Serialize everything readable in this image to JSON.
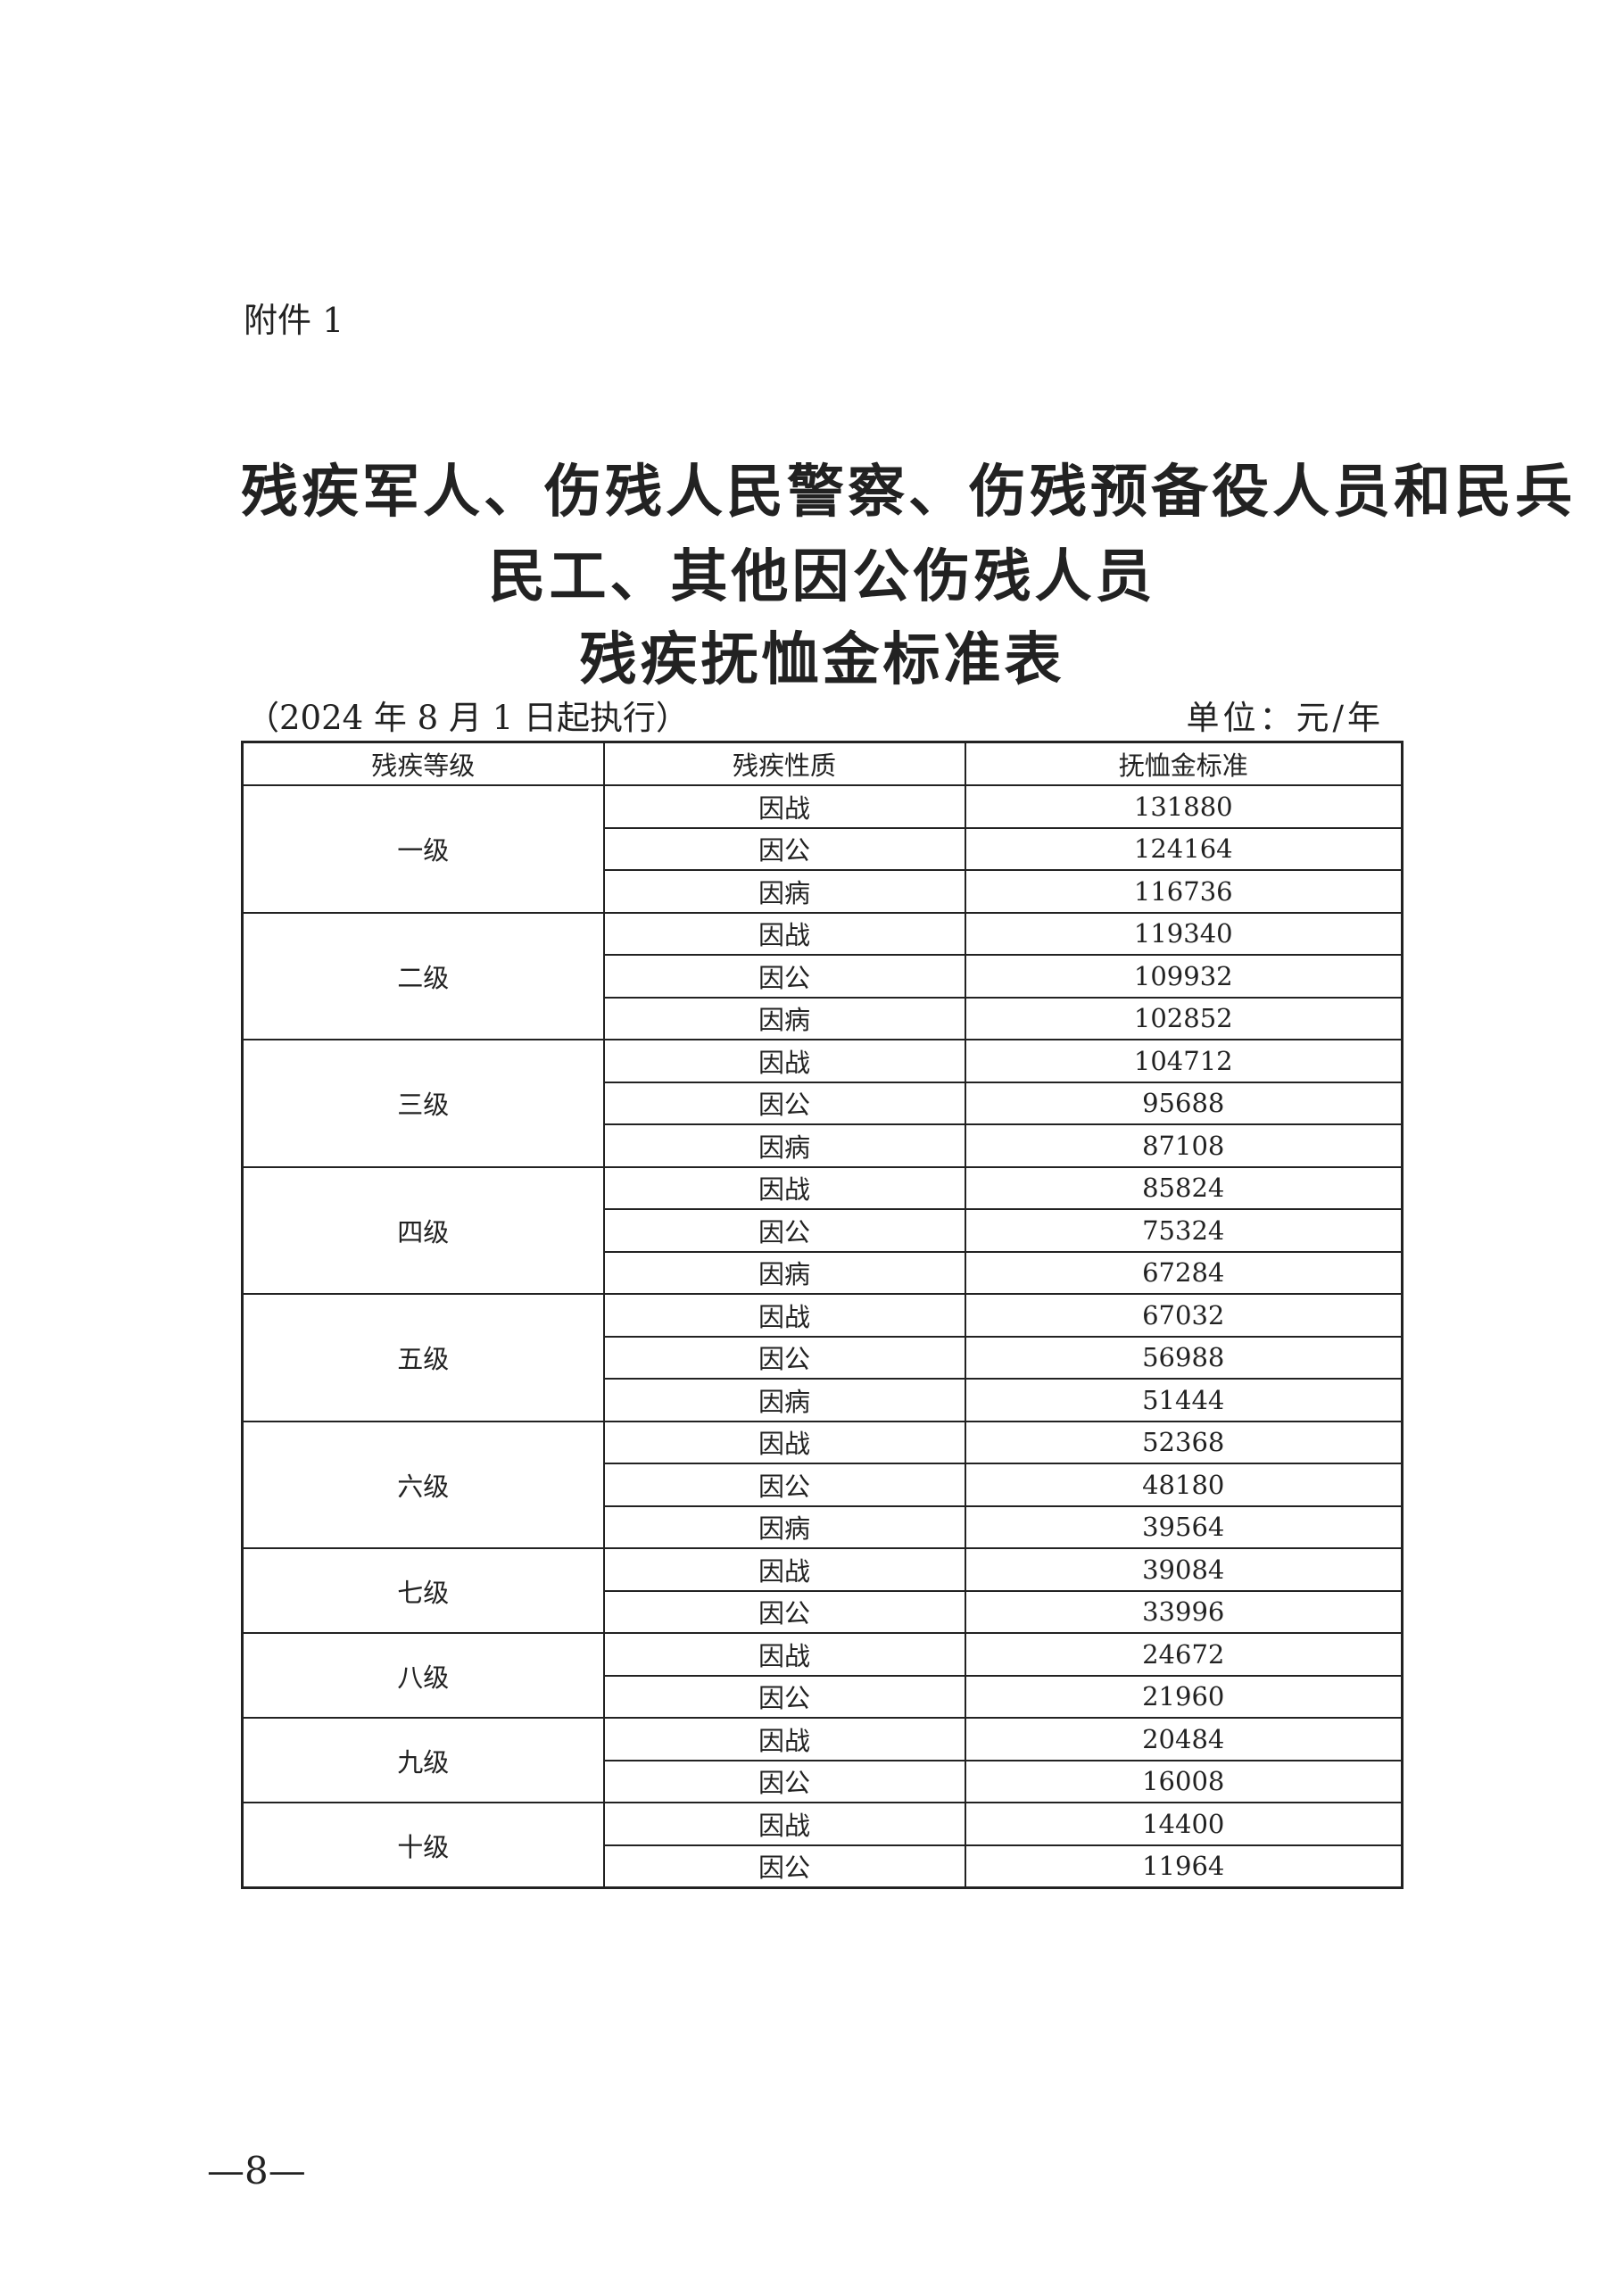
{
  "attachment_label": "附件 1",
  "title_lines": [
    "残疾军人、伤残人民警察、伤残预备役人员和民兵",
    "民工、其他因公伤残人员",
    "残疾抚恤金标准表"
  ],
  "effective_note": "（2024 年 8 月 1 日起执行）",
  "unit_note": "单位：元/年",
  "table": {
    "headers": [
      "残疾等级",
      "残疾性质",
      "抚恤金标准"
    ],
    "groups": [
      {
        "grade": "一级",
        "rows": [
          [
            "因战",
            "131880"
          ],
          [
            "因公",
            "124164"
          ],
          [
            "因病",
            "116736"
          ]
        ]
      },
      {
        "grade": "二级",
        "rows": [
          [
            "因战",
            "119340"
          ],
          [
            "因公",
            "109932"
          ],
          [
            "因病",
            "102852"
          ]
        ]
      },
      {
        "grade": "三级",
        "rows": [
          [
            "因战",
            "104712"
          ],
          [
            "因公",
            "95688"
          ],
          [
            "因病",
            "87108"
          ]
        ]
      },
      {
        "grade": "四级",
        "rows": [
          [
            "因战",
            "85824"
          ],
          [
            "因公",
            "75324"
          ],
          [
            "因病",
            "67284"
          ]
        ]
      },
      {
        "grade": "五级",
        "rows": [
          [
            "因战",
            "67032"
          ],
          [
            "因公",
            "56988"
          ],
          [
            "因病",
            "51444"
          ]
        ]
      },
      {
        "grade": "六级",
        "rows": [
          [
            "因战",
            "52368"
          ],
          [
            "因公",
            "48180"
          ],
          [
            "因病",
            "39564"
          ]
        ]
      },
      {
        "grade": "七级",
        "rows": [
          [
            "因战",
            "39084"
          ],
          [
            "因公",
            "33996"
          ]
        ]
      },
      {
        "grade": "八级",
        "rows": [
          [
            "因战",
            "24672"
          ],
          [
            "因公",
            "21960"
          ]
        ]
      },
      {
        "grade": "九级",
        "rows": [
          [
            "因战",
            "20484"
          ],
          [
            "因公",
            "16008"
          ]
        ]
      },
      {
        "grade": "十级",
        "rows": [
          [
            "因战",
            "14400"
          ],
          [
            "因公",
            "11964"
          ]
        ]
      }
    ]
  },
  "page_number": "—8—"
}
